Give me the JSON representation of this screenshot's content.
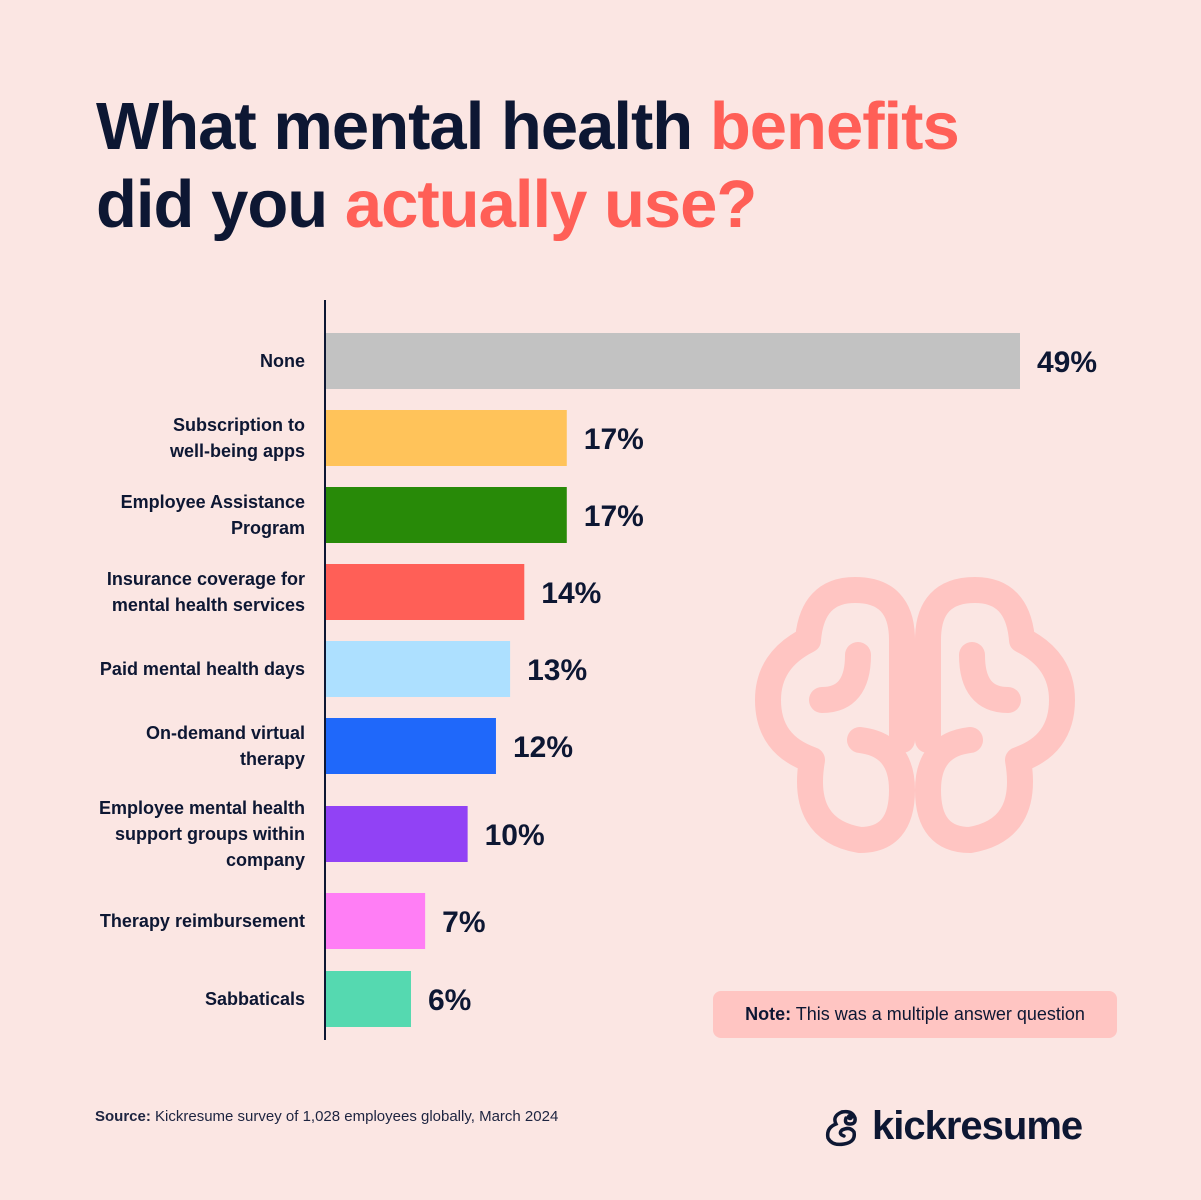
{
  "title": {
    "part1": "What mental health ",
    "part2": "benefits",
    "part3": "did you ",
    "part4": "actually use?"
  },
  "chart_data": {
    "type": "bar",
    "orientation": "horizontal",
    "categories": [
      "None",
      "Subscription to well-being apps",
      "Employee Assistance Program",
      "Insurance coverage for mental health services",
      "Paid mental health days",
      "On-demand virtual therapy",
      "Employee mental health support groups within company",
      "Therapy reimbursement",
      "Sabbaticals"
    ],
    "label_lines": [
      [
        "None"
      ],
      [
        "Subscription to",
        "well-being apps"
      ],
      [
        "Employee Assistance",
        "Program"
      ],
      [
        "Insurance coverage for",
        "mental health services"
      ],
      [
        "Paid mental health days"
      ],
      [
        "On-demand virtual",
        "therapy"
      ],
      [
        "Employee mental health",
        "support groups within",
        "company"
      ],
      [
        "Therapy reimbursement"
      ],
      [
        "Sabbaticals"
      ]
    ],
    "values": [
      49,
      17,
      17,
      14,
      13,
      12,
      10,
      7,
      6
    ],
    "data_labels": [
      "49%",
      "17%",
      "17%",
      "14%",
      "13%",
      "12%",
      "10%",
      "7%",
      "6%"
    ],
    "colors": [
      "#c2c2c2",
      "#ffc35a",
      "#288a08",
      "#ff5f57",
      "#ade0ff",
      "#1f68fa",
      "#9142f5",
      "#ff7ef5",
      "#55d9b0"
    ],
    "unit": "%",
    "grid": false,
    "legend": "none"
  },
  "note": {
    "bold": "Note:",
    "text": " This was a multiple answer question"
  },
  "source": {
    "bold": "Source:",
    "text": " Kickresume survey of 1,028 employees globally, March 2024"
  },
  "logo": {
    "text": "kickresume"
  },
  "colors": {
    "background": "#fbe6e3",
    "text": "#0d1733",
    "accent": "#ff5f57",
    "brain": "#ffc5c2"
  },
  "icons": [
    "brain-icon",
    "kickresume-logo-icon"
  ]
}
